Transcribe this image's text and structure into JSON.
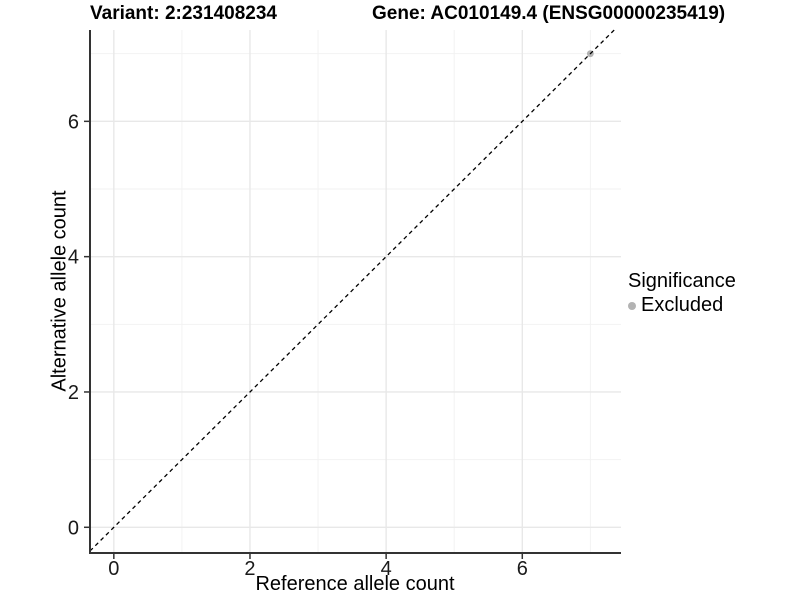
{
  "titles": {
    "variant": "Variant: 2:231408234",
    "gene": "Gene: AC010149.4 (ENSG00000235419)"
  },
  "chart_data": {
    "type": "scatter",
    "xlabel": "Reference allele count",
    "ylabel": "Alternative allele count",
    "xlim": [
      -0.35,
      7.45
    ],
    "ylim": [
      -0.38,
      7.35
    ],
    "x_major_ticks": [
      0,
      2,
      4,
      6
    ],
    "x_minor_ticks": [
      1,
      3,
      5,
      7
    ],
    "y_major_ticks": [
      0,
      2,
      4,
      6
    ],
    "y_minor_ticks": [
      1,
      3,
      5,
      7
    ],
    "grid": true,
    "reference_line": {
      "type": "identity",
      "slope": 1,
      "intercept": 0,
      "style": "dashed",
      "color": "#000000"
    },
    "series": [
      {
        "name": "Excluded",
        "color": "#b3b3b3",
        "points": [
          {
            "x": 7,
            "y": 7
          }
        ]
      }
    ],
    "legend": {
      "title": "Significance",
      "position": "right",
      "items": [
        {
          "label": "Excluded",
          "color": "#b3b3b3"
        }
      ]
    },
    "style": {
      "axis_line_color": "#333333",
      "tick_color": "#333333",
      "tick_label_color": "#1a1a1a",
      "major_grid_color": "#e8e8e8",
      "minor_grid_color": "#f2f2f2",
      "panel_background": "#ffffff"
    }
  }
}
